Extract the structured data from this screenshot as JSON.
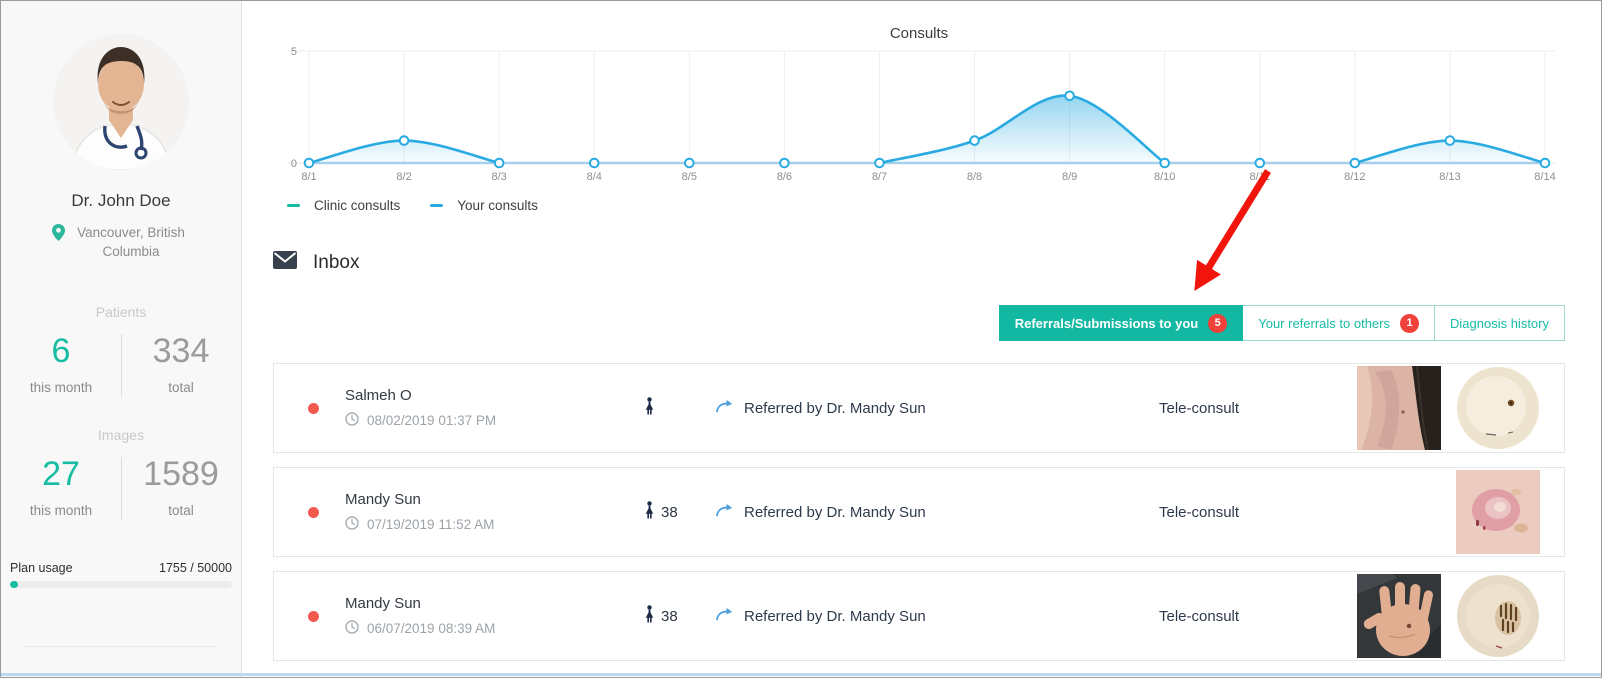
{
  "sidebar": {
    "doctor_name": "Dr. John Doe",
    "location": "Vancouver, British Columbia",
    "patients": {
      "header": "Patients",
      "this_month": "6",
      "this_month_label": "this month",
      "total": "334",
      "total_label": "total"
    },
    "images": {
      "header": "Images",
      "this_month": "27",
      "this_month_label": "this month",
      "total": "1589",
      "total_label": "total"
    },
    "plan_usage": {
      "label": "Plan usage",
      "value": "1755 / 50000",
      "percent": 3.5
    }
  },
  "chart_data": {
    "type": "area",
    "title": "Consults",
    "categories": [
      "8/1",
      "8/2",
      "8/3",
      "8/4",
      "8/5",
      "8/6",
      "8/7",
      "8/8",
      "8/9",
      "8/10",
      "8/11",
      "8/12",
      "8/13",
      "8/14"
    ],
    "series": [
      {
        "name": "Clinic consults",
        "color": "#14bba6",
        "values": [
          0,
          0,
          0,
          0,
          0,
          0,
          0,
          0,
          0,
          0,
          0,
          0,
          0,
          0
        ]
      },
      {
        "name": "Your consults",
        "color": "#29abe2",
        "values": [
          0,
          1,
          0,
          0,
          0,
          0,
          0,
          1,
          3,
          0,
          0,
          0,
          1,
          0
        ]
      }
    ],
    "ylim": [
      0,
      5
    ],
    "yticks": [
      0,
      5
    ],
    "grid": "vertical",
    "legend_position": "bottom-left"
  },
  "legend": [
    {
      "label": "Clinic consults",
      "color": "#14bba6"
    },
    {
      "label": "Your consults",
      "color": "#29abe2"
    }
  ],
  "inbox": {
    "title": "Inbox",
    "tabs": [
      {
        "label": "Referrals/Submissions to you",
        "badge": "5",
        "active": true
      },
      {
        "label": "Your referrals to others",
        "badge": "1",
        "active": false
      },
      {
        "label": "Diagnosis history",
        "badge": null,
        "active": false
      }
    ],
    "rows": [
      {
        "name": "Salmeh O",
        "timestamp": "08/02/2019 01:37 PM",
        "age": "",
        "referred_by": "Referred by Dr. Mandy Sun",
        "consult_type": "Tele-consult",
        "thumbnails": [
          "skin-photo",
          "dermoscopy-circle"
        ]
      },
      {
        "name": "Mandy Sun",
        "timestamp": "07/19/2019 11:52 AM",
        "age": "38",
        "referred_by": "Referred by Dr. Mandy Sun",
        "consult_type": "Tele-consult",
        "thumbnails": [
          "lesion-photo"
        ]
      },
      {
        "name": "Mandy Sun",
        "timestamp": "06/07/2019 08:39 AM",
        "age": "38",
        "referred_by": "Referred by Dr. Mandy Sun",
        "consult_type": "Tele-consult",
        "thumbnails": [
          "hand-photo",
          "dermoscopy-circle-mole"
        ]
      }
    ]
  },
  "colors": {
    "teal": "#14bba6",
    "chart_blue": "#29abe2",
    "pale_blue_baseline": "#a9cfec",
    "badge_red": "#f0413a",
    "unread_dot_red": "#f25a4e",
    "annotation_arrow_red": "#f2150c"
  }
}
